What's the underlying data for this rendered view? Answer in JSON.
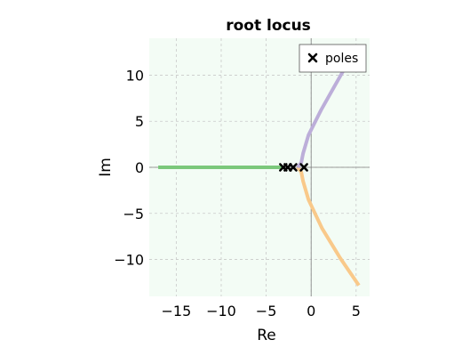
{
  "chart_data": {
    "type": "line",
    "title": "root locus",
    "xlabel": "Re",
    "ylabel": "Im",
    "xlim": [
      -18,
      6.5
    ],
    "ylim": [
      -14,
      14
    ],
    "xticks": [
      -15,
      -10,
      -5,
      0,
      5
    ],
    "yticks": [
      -10,
      -5,
      0,
      5,
      10
    ],
    "xtick_labels": [
      "−15",
      "−10",
      "−5",
      "0",
      "5"
    ],
    "ytick_labels": [
      "−10",
      "−5",
      "0",
      "5",
      "10"
    ],
    "grid": true,
    "background_color": "#f3fcf5",
    "legend": {
      "position": "top-right",
      "entries": [
        "poles"
      ]
    },
    "series": [
      {
        "color": "#7bc87b",
        "points": [
          [
            -17,
            0
          ],
          [
            -3.2,
            0
          ]
        ]
      },
      {
        "color": "#f9c98a",
        "points": [
          [
            -1.5,
            0
          ],
          [
            -1.1,
            -0.5
          ],
          [
            -0.9,
            -1.5
          ],
          [
            -0.3,
            -3.5
          ],
          [
            1.2,
            -6.6
          ],
          [
            3.2,
            -9.8
          ],
          [
            5.3,
            -12.8
          ]
        ]
      },
      {
        "color": "#bcaed9",
        "points": [
          [
            -1.5,
            0
          ],
          [
            -1.1,
            0.5
          ],
          [
            -0.9,
            1.5
          ],
          [
            -0.3,
            3.5
          ],
          [
            1.1,
            6.2
          ],
          [
            2.6,
            8.8
          ],
          [
            4.0,
            11.2
          ]
        ]
      }
    ],
    "poles": {
      "name": "poles",
      "marker": "x",
      "points": [
        [
          -3.1,
          0
        ],
        [
          -2.6,
          0
        ],
        [
          -2.0,
          0
        ],
        [
          -0.8,
          0
        ]
      ]
    }
  }
}
